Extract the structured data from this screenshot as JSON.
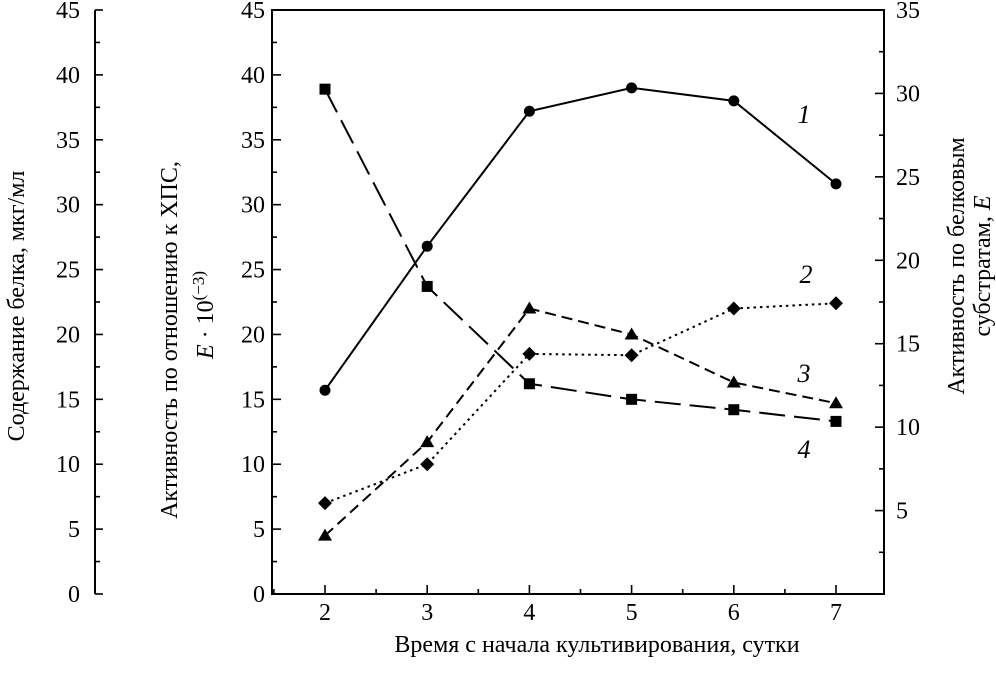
{
  "chart_data": {
    "type": "line",
    "title": "",
    "xlabel": "Время с начала культивирования, сутки",
    "x": [
      2,
      3,
      4,
      5,
      6,
      7
    ],
    "xticks": [
      "2",
      "3",
      "4",
      "5",
      "6",
      "7"
    ],
    "axes": {
      "protein": {
        "label": "Содержание белка, мкг/мл",
        "ylim": [
          0,
          45
        ],
        "ticks": [
          "0",
          "5",
          "10",
          "15",
          "20",
          "25",
          "30",
          "35",
          "40",
          "45"
        ]
      },
      "hps": {
        "label_line1": "Активность по отношению к ХПС,",
        "label_line2_italic": "E",
        "label_line2_rest": " · 10",
        "label_line2_exp": "(−3)",
        "ylim": [
          0,
          45
        ],
        "ticks": [
          "0",
          "5",
          "10",
          "15",
          "20",
          "25",
          "30",
          "35",
          "40",
          "45"
        ]
      },
      "protein_substrates": {
        "label_line1": "Активность по белковым",
        "label_line2": "субстратам, ",
        "label_line2_italic": "E",
        "ylim": [
          0,
          35
        ],
        "ticks": [
          "5",
          "10",
          "15",
          "20",
          "25",
          "30",
          "35"
        ]
      }
    },
    "series": [
      {
        "name": "1",
        "marker": "circle",
        "style": "solid",
        "values": [
          15.7,
          26.8,
          37.2,
          39.0,
          38.0,
          31.6
        ]
      },
      {
        "name": "2",
        "marker": "diamond",
        "style": "dotted",
        "values": [
          7.0,
          10.0,
          18.5,
          18.4,
          22.0,
          22.4
        ]
      },
      {
        "name": "3",
        "marker": "triangle",
        "style": "dashed",
        "values": [
          4.5,
          11.7,
          22.0,
          20.0,
          16.3,
          14.7
        ]
      },
      {
        "name": "4",
        "marker": "square",
        "style": "long-dash",
        "values": [
          38.9,
          23.7,
          16.2,
          15.0,
          14.2,
          13.3
        ]
      }
    ]
  }
}
